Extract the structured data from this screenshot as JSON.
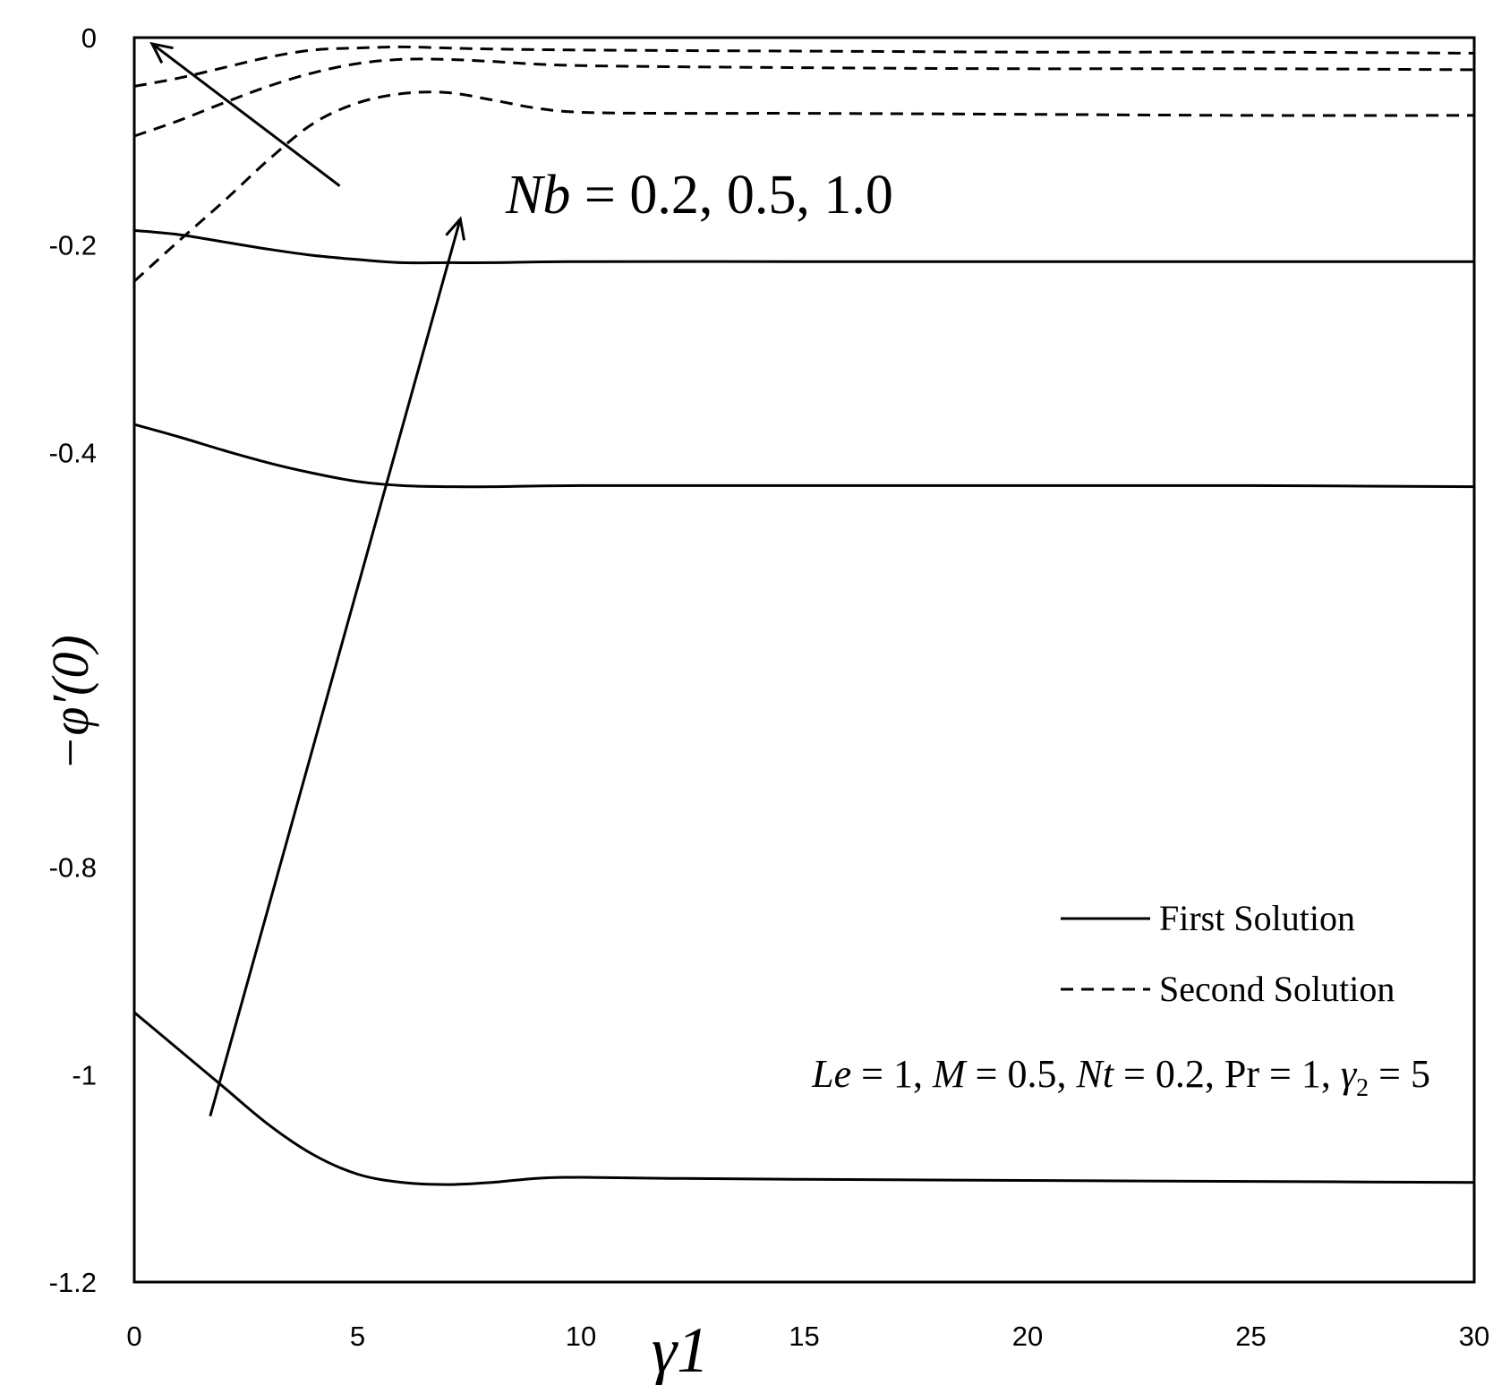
{
  "chart_data": {
    "type": "line",
    "xlabel": "γ1",
    "ylabel": "−φ′(0)",
    "xlim": [
      0,
      30
    ],
    "ylim": [
      -1.2,
      0
    ],
    "x_ticks": [
      "0",
      "5",
      "10",
      "15",
      "20",
      "25",
      "30"
    ],
    "y_ticks": [
      {
        "value": 0,
        "label": "0"
      },
      {
        "value": -0.2,
        "label": "-0.2"
      },
      {
        "value": -0.4,
        "label": "-0.4"
      },
      {
        "value": -0.8,
        "label": "-0.8"
      },
      {
        "value": -1.0,
        "label": "-1"
      },
      {
        "value": -1.2,
        "label": "-1.2"
      }
    ],
    "grid": false,
    "legend": {
      "position": "bottom-right",
      "entries": [
        {
          "label": "First Solution",
          "style": "solid"
        },
        {
          "label": "Second Solution",
          "style": "dashed"
        }
      ]
    },
    "annotations": {
      "nb_label": {
        "var": "Nb",
        "eq": " = ",
        "values": "0.2,  0.5,  1.0"
      },
      "params": {
        "le_var": "Le",
        "le_val": " = 1, ",
        "m_var": "M",
        "m_val": " = 0.5, ",
        "nt_var": "Nt",
        "nt_val": " = 0.2, ",
        "pr_var": "Pr",
        "pr_val": " = 1, ",
        "g_var": "γ",
        "g_sub": "2",
        "g_val": " = 5"
      },
      "arrows": [
        {
          "from": [
            1.7,
            -1.04
          ],
          "to": [
            7.3,
            -0.175
          ]
        },
        {
          "from": [
            4.6,
            -0.143
          ],
          "to": [
            0.4,
            -0.006
          ]
        }
      ]
    },
    "series": [
      {
        "style": "solid",
        "x": [
          0,
          1,
          2,
          3,
          4,
          5,
          6,
          7,
          8,
          9,
          10,
          12,
          15,
          20,
          25,
          30
        ],
        "y": [
          -0.94,
          -0.976,
          -1.012,
          -1.048,
          -1.077,
          -1.096,
          -1.104,
          -1.106,
          -1.104,
          -1.1,
          -1.099,
          -1.1,
          -1.101,
          -1.102,
          -1.103,
          -1.104
        ]
      },
      {
        "style": "solid",
        "x": [
          0,
          1,
          2,
          3,
          4,
          5,
          6,
          7,
          8,
          10,
          15,
          20,
          25,
          30
        ],
        "y": [
          -0.373,
          -0.385,
          -0.398,
          -0.41,
          -0.42,
          -0.428,
          -0.432,
          -0.433,
          -0.433,
          -0.432,
          -0.432,
          -0.432,
          -0.432,
          -0.433
        ]
      },
      {
        "style": "solid",
        "x": [
          0,
          1,
          2,
          3,
          4,
          5,
          6,
          7,
          8,
          10,
          15,
          20,
          25,
          30
        ],
        "y": [
          -0.186,
          -0.19,
          -0.197,
          -0.204,
          -0.21,
          -0.214,
          -0.217,
          -0.217,
          -0.217,
          -0.216,
          -0.216,
          -0.216,
          -0.216,
          -0.216
        ]
      },
      {
        "style": "dashed",
        "x": [
          0,
          1,
          2,
          3,
          4,
          5,
          6,
          7,
          8,
          9,
          10,
          12,
          15,
          20,
          25,
          30
        ],
        "y": [
          -0.235,
          -0.196,
          -0.158,
          -0.118,
          -0.083,
          -0.063,
          -0.054,
          -0.053,
          -0.06,
          -0.068,
          -0.072,
          -0.073,
          -0.073,
          -0.074,
          -0.075,
          -0.075
        ]
      },
      {
        "style": "dashed",
        "x": [
          0,
          1,
          2,
          3,
          4,
          5,
          6,
          7,
          8,
          10,
          15,
          20,
          25,
          30
        ],
        "y": [
          -0.095,
          -0.08,
          -0.063,
          -0.047,
          -0.034,
          -0.025,
          -0.021,
          -0.021,
          -0.023,
          -0.027,
          -0.029,
          -0.03,
          -0.03,
          -0.031
        ]
      },
      {
        "style": "dashed",
        "x": [
          0,
          1,
          2,
          3,
          4,
          5,
          6,
          7,
          8,
          10,
          15,
          20,
          25,
          30
        ],
        "y": [
          -0.047,
          -0.039,
          -0.029,
          -0.019,
          -0.012,
          -0.01,
          -0.009,
          -0.01,
          -0.011,
          -0.012,
          -0.013,
          -0.014,
          -0.014,
          -0.015
        ]
      }
    ]
  }
}
